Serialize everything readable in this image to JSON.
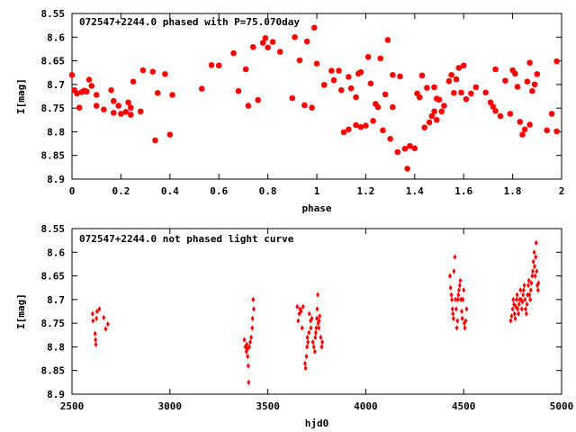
{
  "chart_data": [
    {
      "type": "scatter",
      "title": "072547+2244.0 phased with P=75.070day",
      "xlabel": "phase",
      "ylabel": "I[mag]",
      "xlim": [
        0,
        2
      ],
      "ylim": [
        8.55,
        8.9
      ],
      "y_inverted": true,
      "xticks": [
        "0",
        "0.2",
        "0.4",
        "0.6",
        "0.8",
        "1",
        "1.2",
        "1.4",
        "1.6",
        "1.8",
        "2"
      ],
      "yticks": [
        "8.55",
        "8.6",
        "8.65",
        "8.7",
        "8.75",
        "8.8",
        "8.85",
        "8.9"
      ],
      "color": "#ff0000",
      "marker": "star",
      "points": [
        [
          0.0,
          8.68
        ],
        [
          0.01,
          8.712
        ],
        [
          0.02,
          8.719
        ],
        [
          0.03,
          8.749
        ],
        [
          0.04,
          8.716
        ],
        [
          0.05,
          8.713
        ],
        [
          0.06,
          8.715
        ],
        [
          0.07,
          8.69
        ],
        [
          0.08,
          8.703
        ],
        [
          0.1,
          8.722
        ],
        [
          0.1,
          8.745
        ],
        [
          0.13,
          8.753
        ],
        [
          0.16,
          8.712
        ],
        [
          0.17,
          8.735
        ],
        [
          0.17,
          8.76
        ],
        [
          0.19,
          8.745
        ],
        [
          0.2,
          8.762
        ],
        [
          0.22,
          8.758
        ],
        [
          0.23,
          8.738
        ],
        [
          0.24,
          8.764
        ],
        [
          0.24,
          8.749
        ],
        [
          0.25,
          8.694
        ],
        [
          0.28,
          8.757
        ],
        [
          0.29,
          8.67
        ],
        [
          0.33,
          8.673
        ],
        [
          0.34,
          8.818
        ],
        [
          0.35,
          8.718
        ],
        [
          0.38,
          8.678
        ],
        [
          0.4,
          8.806
        ],
        [
          0.41,
          8.722
        ],
        [
          0.53,
          8.709
        ],
        [
          0.57,
          8.659
        ],
        [
          0.6,
          8.66
        ],
        [
          0.66,
          8.634
        ],
        [
          0.68,
          8.714
        ],
        [
          0.71,
          8.668
        ],
        [
          0.72,
          8.745
        ],
        [
          0.74,
          8.621
        ],
        [
          0.76,
          8.733
        ],
        [
          0.78,
          8.612
        ],
        [
          0.79,
          8.602
        ],
        [
          0.8,
          8.622
        ],
        [
          0.82,
          8.61
        ],
        [
          0.85,
          8.631
        ],
        [
          0.9,
          8.729
        ],
        [
          0.91,
          8.6
        ],
        [
          0.93,
          8.649
        ],
        [
          0.95,
          8.744
        ],
        [
          0.96,
          8.609
        ],
        [
          0.98,
          8.749
        ],
        [
          0.99,
          8.58
        ],
        [
          1.0,
          8.656
        ],
        [
          1.03,
          8.701
        ],
        [
          1.06,
          8.671
        ],
        [
          1.07,
          8.691
        ],
        [
          1.09,
          8.671
        ],
        [
          1.1,
          8.712
        ],
        [
          1.11,
          8.801
        ],
        [
          1.13,
          8.795
        ],
        [
          1.13,
          8.684
        ],
        [
          1.14,
          8.708
        ],
        [
          1.16,
          8.727
        ],
        [
          1.16,
          8.786
        ],
        [
          1.17,
          8.677
        ],
        [
          1.18,
          8.674
        ],
        [
          1.18,
          8.79
        ],
        [
          1.2,
          8.787
        ],
        [
          1.21,
          8.642
        ],
        [
          1.22,
          8.698
        ],
        [
          1.23,
          8.777
        ],
        [
          1.24,
          8.741
        ],
        [
          1.25,
          8.748
        ],
        [
          1.26,
          8.645
        ],
        [
          1.27,
          8.797
        ],
        [
          1.28,
          8.721
        ],
        [
          1.29,
          8.606
        ],
        [
          1.3,
          8.815
        ],
        [
          1.31,
          8.68
        ],
        [
          1.31,
          8.748
        ],
        [
          1.33,
          8.843
        ],
        [
          1.34,
          8.683
        ],
        [
          1.36,
          8.836
        ],
        [
          1.37,
          8.878
        ],
        [
          1.38,
          8.83
        ],
        [
          1.4,
          8.835
        ],
        [
          1.41,
          8.719
        ],
        [
          1.42,
          8.727
        ],
        [
          1.43,
          8.681
        ],
        [
          1.44,
          8.791
        ],
        [
          1.45,
          8.707
        ],
        [
          1.46,
          8.78
        ],
        [
          1.47,
          8.767
        ],
        [
          1.48,
          8.757
        ],
        [
          1.48,
          8.706
        ],
        [
          1.49,
          8.775
        ],
        [
          1.49,
          8.73
        ],
        [
          1.5,
          8.732
        ],
        [
          1.51,
          8.757
        ],
        [
          1.52,
          8.745
        ],
        [
          1.54,
          8.693
        ],
        [
          1.55,
          8.68
        ],
        [
          1.56,
          8.718
        ],
        [
          1.57,
          8.689
        ],
        [
          1.58,
          8.665
        ],
        [
          1.59,
          8.717
        ],
        [
          1.6,
          8.66
        ],
        [
          1.61,
          8.731
        ],
        [
          1.63,
          8.719
        ],
        [
          1.65,
          8.706
        ],
        [
          1.69,
          8.717
        ],
        [
          1.71,
          8.738
        ],
        [
          1.72,
          8.747
        ],
        [
          1.73,
          8.756
        ],
        [
          1.73,
          8.668
        ],
        [
          1.75,
          8.767
        ],
        [
          1.77,
          8.692
        ],
        [
          1.79,
          8.762
        ],
        [
          1.8,
          8.67
        ],
        [
          1.81,
          8.677
        ],
        [
          1.82,
          8.705
        ],
        [
          1.83,
          8.779
        ],
        [
          1.84,
          8.806
        ],
        [
          1.85,
          8.795
        ],
        [
          1.86,
          8.694
        ],
        [
          1.87,
          8.654
        ],
        [
          1.87,
          8.785
        ],
        [
          1.88,
          8.714
        ],
        [
          1.89,
          8.7
        ],
        [
          1.9,
          8.678
        ],
        [
          1.94,
          8.797
        ],
        [
          1.96,
          8.762
        ],
        [
          1.98,
          8.799
        ],
        [
          1.98,
          8.651
        ]
      ]
    },
    {
      "type": "scatter",
      "title": "072547+2244.0 not phased light curve",
      "xlabel": "hjd0",
      "ylabel": "I[mag]",
      "xlim": [
        2500,
        5000
      ],
      "ylim": [
        8.55,
        8.9
      ],
      "y_inverted": true,
      "xticks": [
        "2500",
        "3000",
        "3500",
        "4000",
        "4500",
        "5000"
      ],
      "yticks": [
        "8.55",
        "8.6",
        "8.65",
        "8.7",
        "8.75",
        "8.8",
        "8.85",
        "8.9"
      ],
      "color": "#ff0000",
      "marker": "diamond",
      "points": [
        [
          2605,
          8.73
        ],
        [
          2607,
          8.745
        ],
        [
          2618,
          8.772
        ],
        [
          2620,
          8.785
        ],
        [
          2622,
          8.795
        ],
        [
          2625,
          8.74
        ],
        [
          2628,
          8.725
        ],
        [
          2640,
          8.72
        ],
        [
          2662,
          8.738
        ],
        [
          2672,
          8.762
        ],
        [
          2683,
          8.752
        ],
        [
          3380,
          8.785
        ],
        [
          3385,
          8.8
        ],
        [
          3390,
          8.81
        ],
        [
          3392,
          8.795
        ],
        [
          3395,
          8.805
        ],
        [
          3397,
          8.82
        ],
        [
          3400,
          8.84
        ],
        [
          3402,
          8.875
        ],
        [
          3405,
          8.8
        ],
        [
          3410,
          8.79
        ],
        [
          3415,
          8.78
        ],
        [
          3420,
          8.76
        ],
        [
          3422,
          8.74
        ],
        [
          3425,
          8.7
        ],
        [
          3428,
          8.72
        ],
        [
          3650,
          8.715
        ],
        [
          3655,
          8.745
        ],
        [
          3660,
          8.73
        ],
        [
          3665,
          8.72
        ],
        [
          3670,
          8.725
        ],
        [
          3675,
          8.76
        ],
        [
          3680,
          8.715
        ],
        [
          3690,
          8.835
        ],
        [
          3693,
          8.845
        ],
        [
          3697,
          8.82
        ],
        [
          3700,
          8.8
        ],
        [
          3702,
          8.78
        ],
        [
          3705,
          8.79
        ],
        [
          3710,
          8.77
        ],
        [
          3712,
          8.73
        ],
        [
          3718,
          8.745
        ],
        [
          3720,
          8.76
        ],
        [
          3725,
          8.74
        ],
        [
          3730,
          8.79
        ],
        [
          3735,
          8.8
        ],
        [
          3740,
          8.81
        ],
        [
          3742,
          8.78
        ],
        [
          3745,
          8.77
        ],
        [
          3747,
          8.76
        ],
        [
          3750,
          8.74
        ],
        [
          3752,
          8.72
        ],
        [
          3755,
          8.69
        ],
        [
          3757,
          8.75
        ],
        [
          3760,
          8.76
        ],
        [
          3762,
          8.745
        ],
        [
          3765,
          8.735
        ],
        [
          3770,
          8.78
        ],
        [
          3775,
          8.8
        ],
        [
          3778,
          8.79
        ],
        [
          4430,
          8.65
        ],
        [
          4433,
          8.675
        ],
        [
          4437,
          8.69
        ],
        [
          4440,
          8.7
        ],
        [
          4443,
          8.72
        ],
        [
          4445,
          8.73
        ],
        [
          4448,
          8.74
        ],
        [
          4450,
          8.64
        ],
        [
          4455,
          8.61
        ],
        [
          4458,
          8.7
        ],
        [
          4462,
          8.72
        ],
        [
          4465,
          8.76
        ],
        [
          4468,
          8.745
        ],
        [
          4470,
          8.7
        ],
        [
          4473,
          8.69
        ],
        [
          4476,
          8.68
        ],
        [
          4480,
          8.67
        ],
        [
          4483,
          8.66
        ],
        [
          4486,
          8.7
        ],
        [
          4490,
          8.725
        ],
        [
          4493,
          8.74
        ],
        [
          4496,
          8.7
        ],
        [
          4500,
          8.68
        ],
        [
          4503,
          8.75
        ],
        [
          4506,
          8.76
        ],
        [
          4510,
          8.745
        ],
        [
          4515,
          8.72
        ],
        [
          4740,
          8.745
        ],
        [
          4745,
          8.735
        ],
        [
          4750,
          8.72
        ],
        [
          4753,
          8.7
        ],
        [
          4757,
          8.71
        ],
        [
          4760,
          8.73
        ],
        [
          4763,
          8.74
        ],
        [
          4767,
          8.715
        ],
        [
          4770,
          8.7
        ],
        [
          4773,
          8.69
        ],
        [
          4776,
          8.72
        ],
        [
          4780,
          8.73
        ],
        [
          4783,
          8.71
        ],
        [
          4786,
          8.7
        ],
        [
          4790,
          8.68
        ],
        [
          4793,
          8.7
        ],
        [
          4797,
          8.72
        ],
        [
          4800,
          8.705
        ],
        [
          4803,
          8.69
        ],
        [
          4806,
          8.68
        ],
        [
          4810,
          8.67
        ],
        [
          4813,
          8.7
        ],
        [
          4816,
          8.72
        ],
        [
          4820,
          8.73
        ],
        [
          4823,
          8.71
        ],
        [
          4826,
          8.69
        ],
        [
          4830,
          8.67
        ],
        [
          4833,
          8.66
        ],
        [
          4836,
          8.69
        ],
        [
          4840,
          8.7
        ],
        [
          4843,
          8.68
        ],
        [
          4846,
          8.665
        ],
        [
          4850,
          8.65
        ],
        [
          4853,
          8.64
        ],
        [
          4856,
          8.62
        ],
        [
          4860,
          8.6
        ],
        [
          4862,
          8.63
        ],
        [
          4865,
          8.65
        ],
        [
          4868,
          8.61
        ],
        [
          4870,
          8.58
        ],
        [
          4873,
          8.64
        ],
        [
          4876,
          8.67
        ],
        [
          4880,
          8.68
        ],
        [
          4882,
          8.665
        ]
      ]
    }
  ]
}
